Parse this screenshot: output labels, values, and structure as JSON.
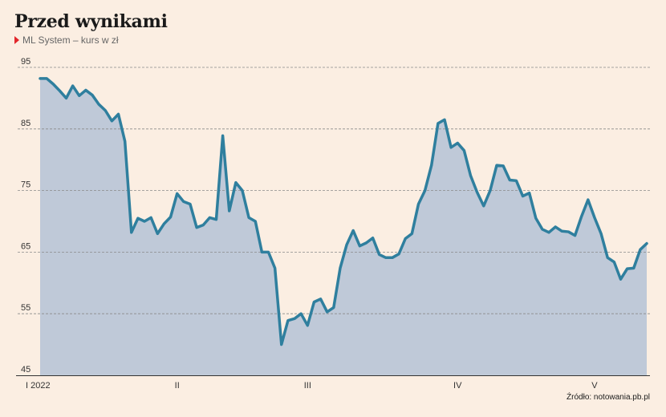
{
  "header": {
    "title": "Przed wynikami",
    "subtitle": "ML System – kurs w zł"
  },
  "footer": {
    "source": "Źródło: notowania.pb.pl"
  },
  "colors": {
    "line": "#2F7F9E",
    "area": "#BFC9D8",
    "marker": "#E2262B",
    "background": "#FBEEE2"
  },
  "chart_data": {
    "type": "area",
    "title": "Przed wynikami",
    "subtitle": "ML System – kurs w zł",
    "ylim": [
      45,
      95
    ],
    "yticks": [
      45,
      55,
      65,
      75,
      85,
      95
    ],
    "grid": "horizontal-dashed",
    "x_tick_labels": [
      {
        "label": "I 2022",
        "index": 0
      },
      {
        "label": "II",
        "index": 21
      },
      {
        "label": "III",
        "index": 41
      },
      {
        "label": "IV",
        "index": 64
      },
      {
        "label": "V",
        "index": 85
      }
    ],
    "values": [
      93.2,
      93.2,
      92.3,
      91.2,
      90,
      92,
      90.4,
      91.3,
      90.5,
      89,
      88,
      86.3,
      87.4,
      83,
      68.2,
      70.5,
      70,
      70.6,
      68,
      69.6,
      70.7,
      74.5,
      73.2,
      72.8,
      69,
      69.4,
      70.6,
      70.3,
      83.9,
      71.7,
      76.3,
      75,
      70.6,
      70,
      65,
      65,
      62.4,
      50,
      53.9,
      54.2,
      55,
      53.1,
      56.9,
      57.4,
      55.3,
      56,
      62.4,
      66.2,
      68.5,
      66,
      66.5,
      67.3,
      64.6,
      64.1,
      64.1,
      64.7,
      67.2,
      68,
      72.8,
      75,
      79.1,
      85.9,
      86.5,
      82,
      82.7,
      81.5,
      77.4,
      74.7,
      72.5,
      75,
      79.1,
      79,
      76.7,
      76.6,
      74.1,
      74.6,
      70.5,
      68.7,
      68.2,
      69.1,
      68.4,
      68.3,
      67.7,
      70.8,
      73.5,
      70.6,
      68,
      64.1,
      63.4,
      60.6,
      62.3,
      62.4,
      65.4,
      66.4
    ]
  }
}
